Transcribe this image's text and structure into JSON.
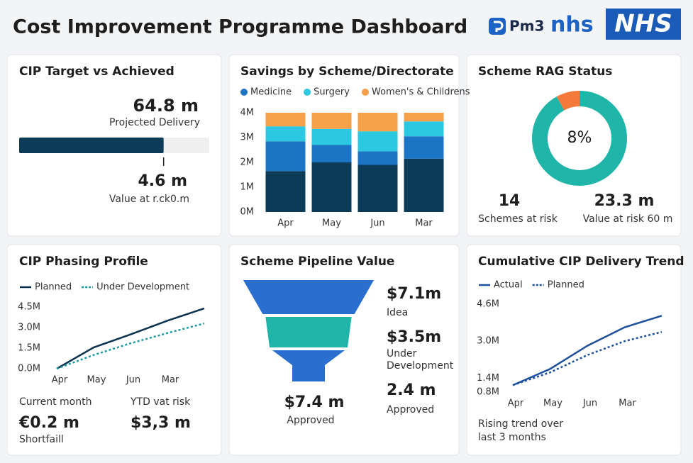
{
  "header": {
    "title": "Cost Improvement Programme Dashboard",
    "logos": [
      "Pm3",
      "nhs",
      "NHS"
    ]
  },
  "chart_data": [
    {
      "type": "progress",
      "title": "CIP Target vs Achieved",
      "values": [
        76
      ],
      "xlim": [
        0,
        100
      ],
      "color": "#0b3b57",
      "kpis": [
        {
          "value": "64.8 m",
          "label": "Projected Delivery"
        },
        {
          "value": "4.6 m",
          "label": "Value at r.ck0.m"
        }
      ]
    },
    {
      "type": "stacked_bar",
      "title": "Savings by Scheme/Directorate",
      "categories": [
        "Apr",
        "May",
        "Jun",
        "Mar"
      ],
      "series": [
        {
          "name": null,
          "color": "#0b3b57",
          "values": [
            1.65,
            2.0,
            1.9,
            2.15
          ]
        },
        {
          "name": "Medicine",
          "color": "#1b75c4",
          "values": [
            1.2,
            0.7,
            0.55,
            0.9
          ]
        },
        {
          "name": "Surgery",
          "color": "#2cc7e0",
          "values": [
            0.6,
            0.65,
            0.8,
            0.6
          ]
        },
        {
          "name": "Women's & Childrens",
          "color": "#f5a04a",
          "values": [
            0.55,
            0.65,
            0.75,
            0.35
          ]
        }
      ],
      "ylim": [
        0,
        4
      ],
      "yticks": [
        {
          "value": 0,
          "label": "0M"
        },
        {
          "value": 1,
          "label": "1M"
        },
        {
          "value": 2,
          "label": "2M"
        },
        {
          "value": 3,
          "label": "3M"
        },
        {
          "value": 4,
          "label": "4M"
        }
      ]
    },
    {
      "type": "donut",
      "title": "Scheme RAG Status",
      "values": [
        8,
        92
      ],
      "value_labels": [
        "8%",
        null
      ],
      "colors": [
        "#f47a3c",
        "#1fb5a8"
      ],
      "kpis": [
        {
          "value": "14",
          "label": "Schemes at risk"
        },
        {
          "value": "23.3 m",
          "label": "Value at risk 60 m"
        }
      ]
    },
    {
      "type": "line",
      "title": "CIP Phasing Profile",
      "categories": [
        "Apr",
        "May",
        "Jun",
        "Mar",
        null
      ],
      "series": [
        {
          "name": "Planned",
          "color": "#0b3350",
          "style": "solid",
          "values": [
            0,
            1.55,
            2.5,
            3.5,
            4.4
          ]
        },
        {
          "name": "Under Development",
          "color": "#1a9aa0",
          "style": "dotted",
          "values": [
            0,
            1.0,
            1.85,
            2.6,
            3.3
          ]
        }
      ],
      "ylim": [
        0,
        4.5
      ],
      "yticks": [
        {
          "value": 0,
          "label": "0.0M"
        },
        {
          "value": 1.5,
          "label": "1.5M"
        },
        {
          "value": 3,
          "label": "3.0M"
        },
        {
          "value": 4.5,
          "label": "4.5M"
        }
      ],
      "kpis": [
        {
          "caption": "Current month",
          "value": "€0.2 m",
          "label": "Shortfaill"
        },
        {
          "caption": "YTD vat risk",
          "value": "$3,3 m"
        }
      ]
    },
    {
      "type": "funnel",
      "title": "Scheme Pipeline Value",
      "categories": [
        "Idea",
        "Under Development",
        "Approved"
      ],
      "values": [
        7.1,
        3.5,
        2.4
      ],
      "value_labels": [
        "$7.1m",
        "$3.5m",
        "2.4 m"
      ],
      "colors": [
        "#2a6fcf",
        "#1fb5a8",
        "#2a6fcf"
      ],
      "total": {
        "value": "$7.4 m",
        "label": "Approved"
      }
    },
    {
      "type": "line",
      "title": "Cumulative CIP Delivery Trend",
      "categories": [
        "Apr",
        "May",
        "Jun",
        "Mar",
        null
      ],
      "series": [
        {
          "name": "Actual",
          "color": "#1d4f9c",
          "style": "solid",
          "values": [
            1.1,
            1.8,
            2.8,
            3.6,
            4.1
          ]
        },
        {
          "name": "Planned",
          "color": "#1d4f9c",
          "style": "dotted",
          "values": [
            1.1,
            1.65,
            2.4,
            3.0,
            3.4
          ]
        }
      ],
      "ylim": [
        0.8,
        4.6
      ],
      "yticks": [
        {
          "value": 0.8,
          "label": "0.8M"
        },
        {
          "value": 1.4,
          "label": "1.4M"
        },
        {
          "value": 3.0,
          "label": "3.0M"
        },
        {
          "value": 4.6,
          "label": "4.6M"
        }
      ],
      "note": "Rising trend over last 3 months"
    }
  ]
}
